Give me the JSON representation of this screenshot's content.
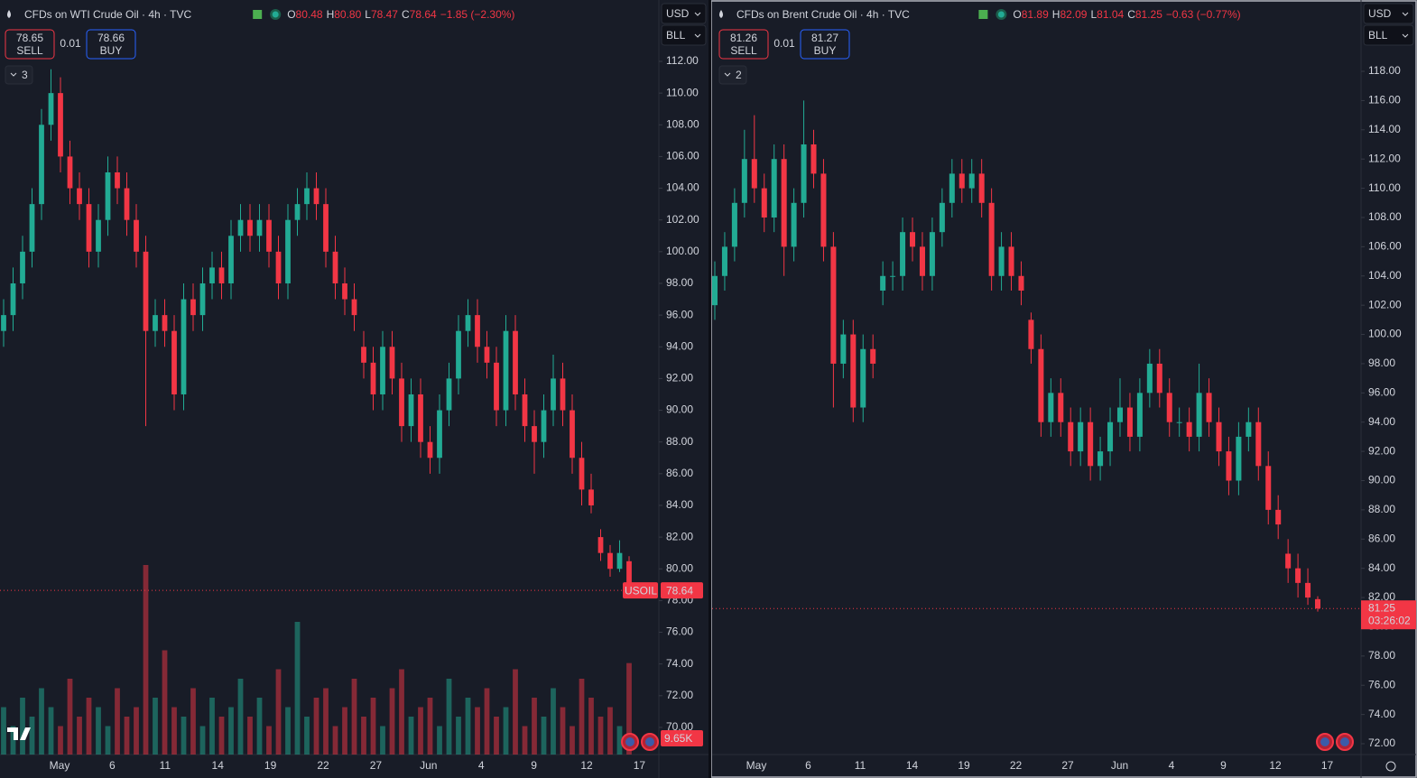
{
  "chart_data": [
    {
      "type": "candlestick",
      "title": "CFDs on WTI Crude Oil · 4h · TVC",
      "ohlc": [
        {
          "label": "O",
          "value": "80.48"
        },
        {
          "label": "H",
          "value": "80.80"
        },
        {
          "label": "L",
          "value": "78.47"
        },
        {
          "label": "C",
          "value": "78.64"
        }
      ],
      "change": "−1.85 (−2.30%)",
      "sell": {
        "price": "78.65",
        "label": "SELL"
      },
      "spread": "0.01",
      "buy": {
        "price": "78.66",
        "label": "BUY"
      },
      "currency": "USD",
      "unit": "BLL",
      "indicators": "3",
      "symbol_label": "USOIL",
      "last_label": "78.64",
      "volume_label": "9.65K",
      "up_color": "#22ab94",
      "down_color": "#f23645",
      "categories": [
        "May",
        "6",
        "11",
        "14",
        "19",
        "22",
        "27",
        "Jun",
        "4",
        "9",
        "12",
        "17"
      ],
      "ylim": [
        68.29,
        115.87
      ],
      "yticks": [
        {
          "value": 112,
          "label": "112.00"
        },
        {
          "value": 110,
          "label": "110.00"
        },
        {
          "value": 108,
          "label": "108.00"
        },
        {
          "value": 106,
          "label": "106.00"
        },
        {
          "value": 104,
          "label": "104.00"
        },
        {
          "value": 102,
          "label": "102.00"
        },
        {
          "value": 100,
          "label": "100.00"
        },
        {
          "value": 98,
          "label": "98.00"
        },
        {
          "value": 96,
          "label": "96.00"
        },
        {
          "value": 94,
          "label": "94.00"
        },
        {
          "value": 92,
          "label": "92.00"
        },
        {
          "value": 90,
          "label": "90.00"
        },
        {
          "value": 88,
          "label": "88.00"
        },
        {
          "value": 86,
          "label": "86.00"
        },
        {
          "value": 84,
          "label": "84.00"
        },
        {
          "value": 82,
          "label": "82.00"
        },
        {
          "value": 80,
          "label": "80.00"
        },
        {
          "value": 78,
          "label": "78.00"
        },
        {
          "value": 76,
          "label": "76.00"
        },
        {
          "value": 74,
          "label": "74.00"
        },
        {
          "value": 72,
          "label": "72.00"
        },
        {
          "value": 70,
          "label": "70.00"
        }
      ],
      "candles": [
        [
          95,
          97,
          94,
          96
        ],
        [
          96,
          99,
          95,
          98
        ],
        [
          98,
          101,
          97,
          100
        ],
        [
          100,
          104,
          99,
          103
        ],
        [
          103,
          109,
          102,
          108
        ],
        [
          108,
          111.5,
          107,
          110
        ],
        [
          110,
          111,
          105,
          106
        ],
        [
          106,
          107,
          103,
          104
        ],
        [
          104,
          105,
          102,
          103
        ],
        [
          103,
          104,
          99,
          100
        ],
        [
          100,
          103,
          99,
          102
        ],
        [
          102,
          106,
          101,
          105
        ],
        [
          105,
          106,
          103,
          104
        ],
        [
          104,
          105,
          101,
          102
        ],
        [
          102,
          103,
          99,
          100
        ],
        [
          100,
          101,
          89,
          95
        ],
        [
          95,
          97,
          94,
          96
        ],
        [
          96,
          97,
          94,
          95
        ],
        [
          95,
          96,
          90,
          91
        ],
        [
          91,
          98,
          90,
          97
        ],
        [
          97,
          98,
          95,
          96
        ],
        [
          96,
          99,
          95,
          98
        ],
        [
          98,
          100,
          97,
          99
        ],
        [
          99,
          100,
          97,
          98
        ],
        [
          98,
          102,
          97,
          101
        ],
        [
          101,
          103,
          100,
          102
        ],
        [
          102,
          103,
          100,
          101
        ],
        [
          101,
          103,
          100,
          102
        ],
        [
          102,
          103,
          99,
          100
        ],
        [
          100,
          101,
          97,
          98
        ],
        [
          98,
          103,
          97,
          102
        ],
        [
          102,
          104,
          101,
          103
        ],
        [
          103,
          105,
          102,
          104
        ],
        [
          104,
          105,
          102,
          103
        ],
        [
          103,
          104,
          99,
          100
        ],
        [
          100,
          101,
          97,
          98
        ],
        [
          98,
          99,
          96,
          97
        ],
        [
          97,
          98,
          95,
          96
        ],
        [
          94,
          95,
          92,
          93
        ],
        [
          93,
          94,
          90,
          91
        ],
        [
          91,
          95,
          90,
          94
        ],
        [
          94,
          95,
          91,
          92
        ],
        [
          92,
          93,
          88,
          89
        ],
        [
          89,
          92,
          88,
          91
        ],
        [
          91,
          92,
          87,
          88
        ],
        [
          88,
          89,
          86,
          87
        ],
        [
          87,
          91,
          86,
          90
        ],
        [
          90,
          93,
          89,
          92
        ],
        [
          92,
          96,
          91,
          95
        ],
        [
          95,
          97,
          94,
          96
        ],
        [
          96,
          97,
          93,
          94
        ],
        [
          94,
          95,
          92,
          93
        ],
        [
          93,
          94,
          89,
          90
        ],
        [
          90,
          96,
          89,
          95
        ],
        [
          95,
          96,
          90,
          91
        ],
        [
          91,
          92,
          88,
          89
        ],
        [
          89,
          90,
          86,
          88
        ],
        [
          88,
          91,
          87,
          90
        ],
        [
          90,
          93.5,
          89,
          92
        ],
        [
          92,
          93,
          89,
          90
        ],
        [
          90,
          91,
          86,
          87
        ],
        [
          87,
          88,
          84,
          85
        ],
        [
          85,
          86,
          83.5,
          84
        ],
        [
          82,
          82.5,
          80.5,
          81
        ],
        [
          81,
          81.5,
          79.5,
          80
        ],
        [
          80,
          81.8,
          79.8,
          81
        ],
        [
          80.48,
          80.8,
          78.47,
          78.64
        ]
      ],
      "volume": [
        5,
        3,
        6,
        4,
        7,
        5,
        3,
        8,
        4,
        6,
        5,
        3,
        7,
        4,
        5,
        20,
        6,
        11,
        5,
        4,
        7,
        3,
        6,
        4,
        5,
        8,
        4,
        6,
        3,
        9,
        5,
        14,
        4,
        6,
        7,
        3,
        5,
        8,
        4,
        6,
        3,
        7,
        9,
        4,
        5,
        6,
        3,
        8,
        4,
        6,
        5,
        7,
        4,
        5,
        9,
        3,
        6,
        4,
        7,
        5,
        3,
        8,
        6,
        4,
        5,
        3,
        9.65
      ]
    },
    {
      "type": "candlestick",
      "title": "CFDs on Brent Crude Oil · 4h · TVC",
      "ohlc": [
        {
          "label": "O",
          "value": "81.89"
        },
        {
          "label": "H",
          "value": "82.09"
        },
        {
          "label": "L",
          "value": "81.04"
        },
        {
          "label": "C",
          "value": "81.25"
        }
      ],
      "change": "−0.63 (−0.77%)",
      "sell": {
        "price": "81.26",
        "label": "SELL"
      },
      "spread": "0.01",
      "buy": {
        "price": "81.27",
        "label": "BUY"
      },
      "currency": "USD",
      "unit": "BLL",
      "indicators": "2",
      "last_label": "81.25",
      "countdown": "03:26:02",
      "up_color": "#22ab94",
      "down_color": "#f23645",
      "categories": [
        "May",
        "6",
        "11",
        "14",
        "19",
        "22",
        "27",
        "Jun",
        "4",
        "9",
        "12",
        "17"
      ],
      "ylim": [
        71.26,
        122.88
      ],
      "yticks": [
        {
          "value": 118,
          "label": "118.00"
        },
        {
          "value": 116,
          "label": "116.00"
        },
        {
          "value": 114,
          "label": "114.00"
        },
        {
          "value": 112,
          "label": "112.00"
        },
        {
          "value": 110,
          "label": "110.00"
        },
        {
          "value": 108,
          "label": "108.00"
        },
        {
          "value": 106,
          "label": "106.00"
        },
        {
          "value": 104,
          "label": "104.00"
        },
        {
          "value": 102,
          "label": "102.00"
        },
        {
          "value": 100,
          "label": "100.00"
        },
        {
          "value": 98,
          "label": "98.00"
        },
        {
          "value": 96,
          "label": "96.00"
        },
        {
          "value": 94,
          "label": "94.00"
        },
        {
          "value": 92,
          "label": "92.00"
        },
        {
          "value": 90,
          "label": "90.00"
        },
        {
          "value": 88,
          "label": "88.00"
        },
        {
          "value": 86,
          "label": "86.00"
        },
        {
          "value": 84,
          "label": "84.00"
        },
        {
          "value": 82,
          "label": "82.00"
        },
        {
          "value": 80,
          "label": "80.00"
        },
        {
          "value": 78,
          "label": "78.00"
        },
        {
          "value": 76,
          "label": "76.00"
        },
        {
          "value": 74,
          "label": "74.00"
        },
        {
          "value": 72,
          "label": "72.00"
        }
      ],
      "candles": [
        [
          102,
          105,
          101,
          104
        ],
        [
          104,
          107,
          103,
          106
        ],
        [
          106,
          110,
          105,
          109
        ],
        [
          109,
          114,
          108,
          112
        ],
        [
          112,
          115,
          109,
          110
        ],
        [
          110,
          111,
          107,
          108
        ],
        [
          108,
          113,
          107,
          112
        ],
        [
          112,
          113,
          104,
          106
        ],
        [
          106,
          110,
          105,
          109
        ],
        [
          109,
          116,
          108,
          113
        ],
        [
          113,
          114,
          110,
          111
        ],
        [
          111,
          112,
          105,
          106
        ],
        [
          106,
          107,
          95,
          98
        ],
        [
          98,
          101,
          97,
          100
        ],
        [
          100,
          101,
          94,
          95
        ],
        [
          95,
          100,
          94,
          99
        ],
        [
          99,
          100,
          97,
          98
        ],
        [
          103,
          105,
          102,
          104
        ],
        [
          104,
          105,
          103,
          104
        ],
        [
          104,
          108,
          103,
          107
        ],
        [
          107,
          108,
          105,
          106
        ],
        [
          106,
          107,
          103,
          104
        ],
        [
          104,
          108,
          103,
          107
        ],
        [
          107,
          110,
          106,
          109
        ],
        [
          109,
          112,
          108,
          111
        ],
        [
          111,
          112,
          109,
          110
        ],
        [
          110,
          112,
          109,
          111
        ],
        [
          111,
          112,
          108,
          109
        ],
        [
          109,
          110,
          103,
          104
        ],
        [
          104,
          107,
          103,
          106
        ],
        [
          106,
          107,
          103,
          104
        ],
        [
          104,
          105,
          102,
          103
        ],
        [
          101,
          101.5,
          98,
          99
        ],
        [
          99,
          100,
          93,
          94
        ],
        [
          94,
          97,
          93,
          96
        ],
        [
          96,
          97,
          93,
          94
        ],
        [
          94,
          95,
          91,
          92
        ],
        [
          92,
          95,
          91,
          94
        ],
        [
          94,
          95,
          90,
          91
        ],
        [
          91,
          93,
          90,
          92
        ],
        [
          92,
          95,
          91,
          94
        ],
        [
          94,
          97,
          93,
          95
        ],
        [
          95,
          96,
          92,
          93
        ],
        [
          93,
          97,
          92,
          96
        ],
        [
          96,
          99,
          95,
          98
        ],
        [
          98,
          99,
          95,
          96
        ],
        [
          96,
          97,
          93,
          94
        ],
        [
          94,
          95,
          93,
          94
        ],
        [
          94,
          95,
          92,
          93
        ],
        [
          93,
          98,
          92,
          96
        ],
        [
          96,
          97,
          93,
          94
        ],
        [
          94,
          95,
          91,
          92
        ],
        [
          92,
          93,
          89,
          90
        ],
        [
          90,
          94,
          89,
          93
        ],
        [
          93,
          95,
          92,
          94
        ],
        [
          94,
          95,
          90,
          91
        ],
        [
          91,
          92,
          87,
          88
        ],
        [
          88,
          89,
          86,
          87
        ],
        [
          85,
          86,
          83,
          84
        ],
        [
          84,
          85,
          82,
          83
        ],
        [
          83,
          84,
          81.5,
          82
        ],
        [
          81.89,
          82.09,
          81.04,
          81.25
        ]
      ]
    }
  ]
}
